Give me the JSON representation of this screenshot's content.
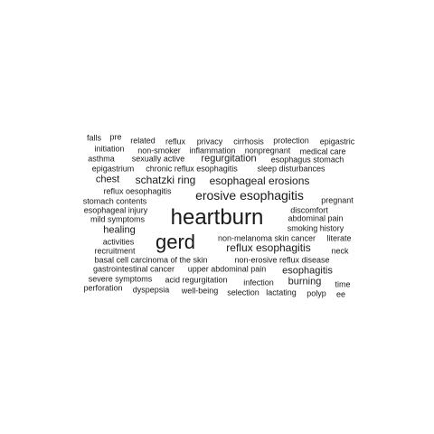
{
  "words": [
    {
      "text": "falls"
    },
    {
      "text": "pre"
    },
    {
      "text": "related"
    },
    {
      "text": "reflux"
    },
    {
      "text": "privacy"
    },
    {
      "text": "cirrhosis"
    },
    {
      "text": "protection"
    },
    {
      "text": "epigastric"
    },
    {
      "text": "initiation"
    },
    {
      "text": "non-smoker"
    },
    {
      "text": "inflammation"
    },
    {
      "text": "nonpregnant"
    },
    {
      "text": "medical care"
    },
    {
      "text": "asthma"
    },
    {
      "text": "sexually active"
    },
    {
      "text": "regurgitation"
    },
    {
      "text": "esophagus stomach"
    },
    {
      "text": "epigastrium"
    },
    {
      "text": "chronic reflux esophagitis"
    },
    {
      "text": "sleep disturbances"
    },
    {
      "text": "chest"
    },
    {
      "text": "schatzki ring"
    },
    {
      "text": "esophageal erosions"
    },
    {
      "text": "reflux oesophagitis"
    },
    {
      "text": "erosive esophagitis"
    },
    {
      "text": "stomach contents"
    },
    {
      "text": "pregnant"
    },
    {
      "text": "esophageal injury"
    },
    {
      "text": "discomfort"
    },
    {
      "text": "heartburn"
    },
    {
      "text": "mild symptoms"
    },
    {
      "text": "abdominal pain"
    },
    {
      "text": "healing"
    },
    {
      "text": "smoking history"
    },
    {
      "text": "gerd"
    },
    {
      "text": "non-melanoma skin cancer"
    },
    {
      "text": "literate"
    },
    {
      "text": "activities"
    },
    {
      "text": "reflux esophagitis"
    },
    {
      "text": "recruitment"
    },
    {
      "text": "neck"
    },
    {
      "text": "basal cell carcinoma of the skin"
    },
    {
      "text": "non-erosive reflux disease"
    },
    {
      "text": "gastrointestinal cancer"
    },
    {
      "text": "upper abdominal pain"
    },
    {
      "text": "esophagitis"
    },
    {
      "text": "severe symptoms"
    },
    {
      "text": "acid regurgitation"
    },
    {
      "text": "infection"
    },
    {
      "text": "burning"
    },
    {
      "text": "time"
    },
    {
      "text": "perforation"
    },
    {
      "text": "dyspepsia"
    },
    {
      "text": "well-being"
    },
    {
      "text": "selection"
    },
    {
      "text": "lactating"
    },
    {
      "text": "polyp"
    },
    {
      "text": "ee"
    }
  ]
}
